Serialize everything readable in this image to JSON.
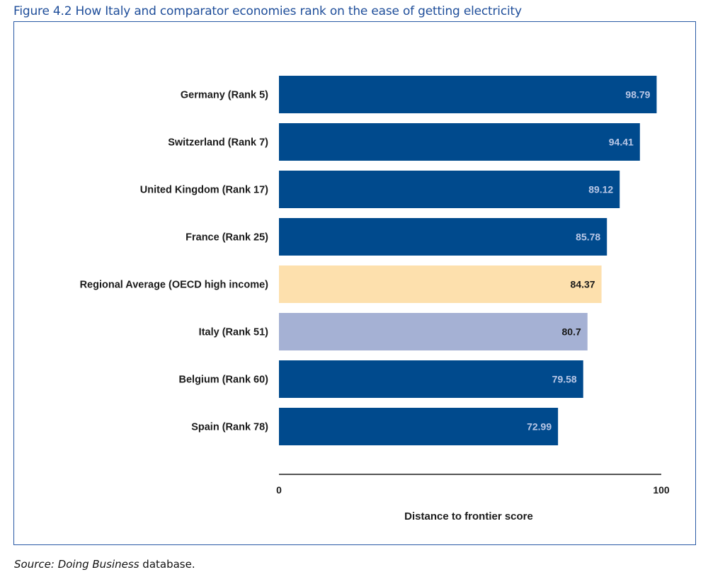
{
  "figure": {
    "title": "Figure 4.2 How Italy and comparator economies rank on the ease of getting electricity"
  },
  "source": {
    "label": "Source:",
    "database_italic": "Doing Business",
    "suffix": " database."
  },
  "chart_data": {
    "type": "bar",
    "orientation": "horizontal",
    "title": "",
    "xlabel": "Distance to frontier score",
    "ylabel": "",
    "xlim": [
      0,
      100
    ],
    "x_ticks": [
      "0",
      "100"
    ],
    "grid": false,
    "legend": "none",
    "categories": [
      "Germany (Rank 5)",
      "Switzerland (Rank 7)",
      "United Kingdom (Rank 17)",
      "France (Rank 25)",
      "Regional Average (OECD high income)",
      "Italy (Rank 51)",
      "Belgium (Rank 60)",
      "Spain (Rank 78)"
    ],
    "values": [
      98.79,
      94.41,
      89.12,
      85.78,
      84.37,
      80.7,
      79.58,
      72.99
    ],
    "value_labels": [
      "98.79",
      "94.41",
      "89.12",
      "85.78",
      "84.37",
      "80.7",
      "79.58",
      "72.99"
    ],
    "colors": {
      "default": "#004a8d",
      "regional_average": "#fde0ad",
      "italy": "#a5b1d4",
      "label_on_dark": "#b9c7e6",
      "label_on_light": "#1a1a1a"
    },
    "bar_color_keys": [
      "default",
      "default",
      "default",
      "default",
      "regional_average",
      "italy",
      "default",
      "default"
    ]
  }
}
